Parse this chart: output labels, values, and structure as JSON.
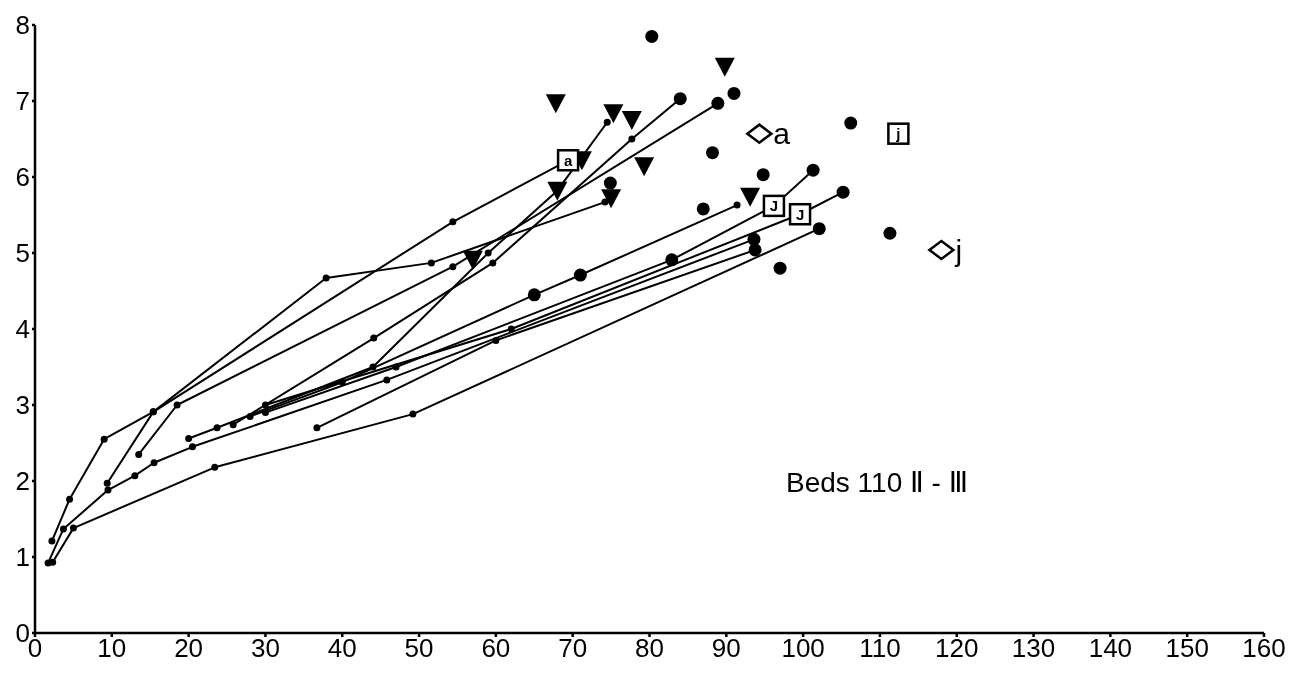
{
  "chart_data": {
    "type": "scatter",
    "xlim": [
      0,
      160
    ],
    "ylim": [
      0,
      8
    ],
    "xticks": [
      0,
      10,
      20,
      30,
      40,
      50,
      60,
      70,
      80,
      90,
      100,
      110,
      120,
      130,
      140,
      150,
      160
    ],
    "yticks": [
      0,
      1,
      2,
      3,
      4,
      5,
      6,
      7,
      8
    ],
    "grid": false,
    "legend": false,
    "annotations": [
      "Beds 110 Ⅱ - Ⅲ",
      {
        "text": "a",
        "x": 94.3,
        "y": 6.57
      },
      {
        "text": "j",
        "x": 118,
        "y": 5.04
      }
    ],
    "series": [
      {
        "type": "line",
        "marker": "circle",
        "color": "#000000",
        "x": [
          2.3,
          5,
          23.4,
          49.2,
          102.1
        ],
        "values": [
          0.93,
          1.38,
          2.18,
          2.88,
          5.32
        ]
      },
      {
        "type": "line",
        "marker": "circle",
        "color": "#000000",
        "x": [
          1.7,
          3.7,
          9.5,
          13,
          15.5,
          20.5,
          45.8,
          93.6
        ],
        "values": [
          0.92,
          1.37,
          1.88,
          2.07,
          2.24,
          2.45,
          3.33,
          5.18
        ]
      },
      {
        "type": "line",
        "marker": "circle",
        "color": "#000000",
        "x": [
          2.2,
          4.5,
          9,
          15.4,
          37.9,
          51.6,
          74.2
        ],
        "values": [
          1.21,
          1.76,
          2.55,
          2.91,
          4.67,
          4.87,
          5.67
        ]
      },
      {
        "type": "line",
        "marker": "circle",
        "color": "#000000",
        "x": [
          9.4,
          15.4,
          54.4,
          69.4
        ],
        "values": [
          1.97,
          2.91,
          5.41,
          6.22
        ]
      },
      {
        "type": "line",
        "marker": "circle",
        "color": "#000000",
        "x": [
          13.5,
          18.5,
          54.4,
          88.9
        ],
        "values": [
          2.35,
          3.0,
          4.82,
          6.97
        ]
      },
      {
        "type": "line",
        "marker": "circle",
        "color": "#000000",
        "x": [
          25.8,
          44.1,
          59.6,
          77.7,
          84
        ],
        "values": [
          2.74,
          3.88,
          4.87,
          6.5,
          7.03
        ]
      },
      {
        "type": "line",
        "marker": "circle",
        "color": "#000000",
        "x": [
          20,
          23.7,
          44,
          59,
          68,
          74.5
        ],
        "values": [
          2.56,
          2.7,
          3.5,
          5.0,
          5.82,
          6.72
        ]
      },
      {
        "type": "line",
        "marker": "circle",
        "color": "#000000",
        "x": [
          28,
          40,
          65,
          71,
          91.4
        ],
        "values": [
          2.85,
          3.3,
          4.45,
          4.71,
          5.63
        ]
      },
      {
        "type": "line",
        "marker": "circle",
        "color": "#000000",
        "x": [
          30,
          47,
          82.9,
          96.2,
          101.3
        ],
        "values": [
          2.9,
          3.5,
          4.91,
          5.62,
          6.09
        ]
      },
      {
        "type": "line",
        "marker": "circle",
        "color": "#000000",
        "x": [
          30,
          62,
          99.6,
          105.2
        ],
        "values": [
          3.0,
          4.0,
          5.51,
          5.8
        ]
      },
      {
        "type": "line",
        "marker": "circle",
        "color": "#000000",
        "x": [
          36.7,
          60,
          93.75
        ],
        "values": [
          2.7,
          3.85,
          5.04
        ]
      },
      {
        "marker": "circle",
        "color": "#000000",
        "x": [
          80.3,
          84,
          88.9,
          91,
          88.2,
          94.8,
          101.3,
          105.2,
          87,
          102.1,
          93.6,
          93.75,
          97,
          82.9,
          71,
          65,
          74.9,
          106.2,
          111.3
        ],
        "values": [
          7.85,
          7.03,
          6.97,
          7.1,
          6.32,
          6.03,
          6.09,
          5.8,
          5.58,
          5.32,
          5.18,
          5.04,
          4.8,
          4.91,
          4.71,
          4.45,
          5.92,
          6.71,
          5.26
        ]
      },
      {
        "marker": "triangle",
        "color": "#000000",
        "x": [
          67.8,
          75.3,
          77.7,
          71.2,
          79.3,
          68,
          75,
          93.1,
          57,
          89.8
        ],
        "values": [
          6.97,
          6.84,
          6.75,
          6.22,
          6.14,
          5.82,
          5.72,
          5.74,
          4.91,
          7.45
        ]
      },
      {
        "marker": "square",
        "color": "#000000",
        "x": [
          69.4,
          96.2,
          99.6,
          112.4
        ],
        "values": [
          6.22,
          5.62,
          5.51,
          6.57
        ],
        "value_labels": [
          "a",
          "J",
          "J",
          "j"
        ]
      },
      {
        "marker": "diamond",
        "color": "#000000",
        "x": [
          94.3,
          118
        ],
        "values": [
          6.57,
          5.04
        ]
      }
    ]
  }
}
